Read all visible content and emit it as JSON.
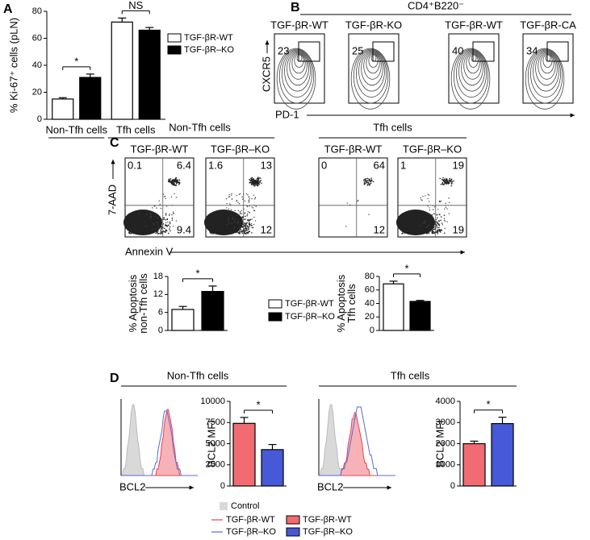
{
  "panel_labels": [
    "A",
    "B",
    "C",
    "D"
  ],
  "chart_data": [
    {
      "type": "bar",
      "y_label": "% Ki-67⁺ cells (pLN)",
      "categories": [
        "Non-Tfh cells",
        "Tfh cells"
      ],
      "series": [
        {
          "name": "TGF-βR-WT",
          "color": "#ffffff",
          "values": [
            15,
            72
          ],
          "errors": [
            1,
            3
          ]
        },
        {
          "name": "TGF-βR–KO",
          "color": "#000000",
          "values": [
            31,
            66
          ],
          "errors": [
            2.5,
            2
          ]
        }
      ],
      "ylim": [
        0,
        80
      ],
      "yticks": [
        0,
        20,
        40,
        60,
        80
      ],
      "significance": [
        "*",
        "NS"
      ]
    },
    {
      "type": "bar",
      "y_label": [
        "% Apoptosis",
        "non-Tfh cells"
      ],
      "categories": [
        null
      ],
      "series": [
        {
          "name": "TGF-βR-WT",
          "color": "#ffffff",
          "values": [
            7
          ],
          "errors": [
            1
          ]
        },
        {
          "name": "TGF-βR–KO",
          "color": "#000000",
          "values": [
            13
          ],
          "errors": [
            1.8
          ]
        }
      ],
      "ylim": [
        0,
        18
      ],
      "yticks": [
        0,
        6,
        12,
        18
      ],
      "significance": [
        "*"
      ]
    },
    {
      "type": "bar",
      "y_label": [
        "% Apoptosis",
        "Tfh cells"
      ],
      "categories": [
        null
      ],
      "series": [
        {
          "color": "#ffffff",
          "values": [
            69
          ],
          "errors": [
            4
          ]
        },
        {
          "color": "#000000",
          "values": [
            43
          ],
          "errors": [
            1.5
          ]
        }
      ],
      "ylim": [
        0,
        80
      ],
      "yticks": [
        0,
        20,
        40,
        60,
        80
      ],
      "significance": [
        "*"
      ]
    },
    {
      "type": "bar",
      "y_label": "BCL2 MFI",
      "categories": [
        null
      ],
      "series": [
        {
          "name": "TGF-βR-WT",
          "color": "#f26b72",
          "values": [
            7400
          ],
          "errors": [
            700
          ]
        },
        {
          "name": "TGF-βR–KO",
          "color": "#4759d6",
          "values": [
            4300
          ],
          "errors": [
            600
          ]
        }
      ],
      "ylim": [
        0,
        10000
      ],
      "yticks": [
        0,
        2500,
        5000,
        7500,
        10000
      ],
      "significance": [
        "*"
      ]
    },
    {
      "type": "bar",
      "y_label": "BCL2 MFI",
      "categories": [
        null
      ],
      "series": [
        {
          "color": "#f26b72",
          "values": [
            2000
          ],
          "errors": [
            120
          ]
        },
        {
          "color": "#4759d6",
          "values": [
            2950
          ],
          "errors": [
            300
          ]
        }
      ],
      "ylim": [
        0,
        4000
      ],
      "yticks": [
        0,
        1000,
        2000,
        3000,
        4000
      ],
      "significance": [
        "*"
      ]
    }
  ],
  "flow_b": {
    "header": "CD4⁺B220⁻",
    "y_label": "CXCR5",
    "x_label": "PD-1",
    "plots": [
      {
        "title": "TGF-βR-WT",
        "gate": 23
      },
      {
        "title": "TGF-βR-KO",
        "gate": 25
      },
      {
        "title": "TGF-βR-WT",
        "gate": 40
      },
      {
        "title": "TGF-βR-CA",
        "gate": 34
      }
    ]
  },
  "flow_c": {
    "y_label": "7-AAD",
    "x_label": "Annexin V",
    "groups": [
      {
        "title": "Non-Tfh cells",
        "plots": [
          {
            "title": "TGF-βR-WT",
            "quadrants": [
              0.1,
              6.4,
              9.4
            ]
          },
          {
            "title": "TGF-βR–KO",
            "quadrants": [
              1.6,
              13,
              12
            ]
          }
        ]
      },
      {
        "title": "Tfh cells",
        "plots": [
          {
            "title": "TGF-βR-WT",
            "quadrants": [
              0,
              64,
              12
            ]
          },
          {
            "title": "TGF-βR–KO",
            "quadrants": [
              1,
              19,
              19
            ]
          }
        ]
      }
    ]
  },
  "histograms_d": {
    "x_label": "BCL2",
    "groups": [
      "Non-Tfh cells",
      "Tfh cells"
    ],
    "legend": [
      "Control",
      "TGF-βR-WT",
      "TGF-βR–KO"
    ]
  }
}
